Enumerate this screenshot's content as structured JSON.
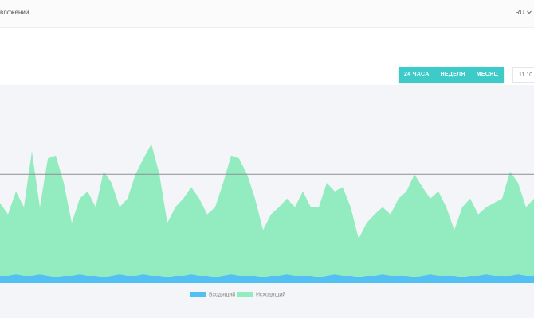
{
  "header": {
    "title": "вложений",
    "language": "RU"
  },
  "controls": {
    "ranges": [
      "24 ЧАСА",
      "НЕДЕЛЯ",
      "МЕСЯЦ"
    ],
    "date": "11.10"
  },
  "chart_data": {
    "type": "area",
    "ylim": [
      0,
      100
    ],
    "threshold": 76,
    "legend": "bottom",
    "series": [
      {
        "name": "Входящий",
        "color": "#52c0f2",
        "values": [
          5,
          5,
          6,
          5,
          5,
          6,
          5,
          4,
          5,
          5,
          6,
          5,
          5,
          4,
          5,
          6,
          5,
          5,
          6,
          5,
          5,
          4,
          5,
          5,
          6,
          5,
          5,
          4,
          5,
          6,
          5,
          5,
          5,
          4,
          5,
          5,
          6,
          5,
          5,
          5,
          4,
          5,
          6,
          5,
          5,
          4,
          5,
          5,
          6,
          5,
          5,
          5,
          4,
          5,
          6,
          5,
          5,
          5,
          4,
          5,
          5,
          6,
          5,
          5,
          5,
          6,
          5,
          5
        ]
      },
      {
        "name": "Исходящий",
        "color": "#93ecbf",
        "values": [
          56,
          48,
          64,
          53,
          92,
          53,
          87,
          89,
          70,
          42,
          59,
          64,
          53,
          78,
          70,
          53,
          59,
          76,
          87,
          97,
          76,
          42,
          53,
          59,
          67,
          59,
          48,
          53,
          70,
          89,
          87,
          76,
          59,
          37,
          48,
          53,
          59,
          53,
          64,
          53,
          53,
          70,
          64,
          67,
          53,
          31,
          42,
          48,
          53,
          48,
          59,
          64,
          76,
          67,
          59,
          64,
          53,
          37,
          53,
          59,
          48,
          53,
          56,
          59,
          78,
          70,
          53,
          59
        ]
      }
    ]
  }
}
